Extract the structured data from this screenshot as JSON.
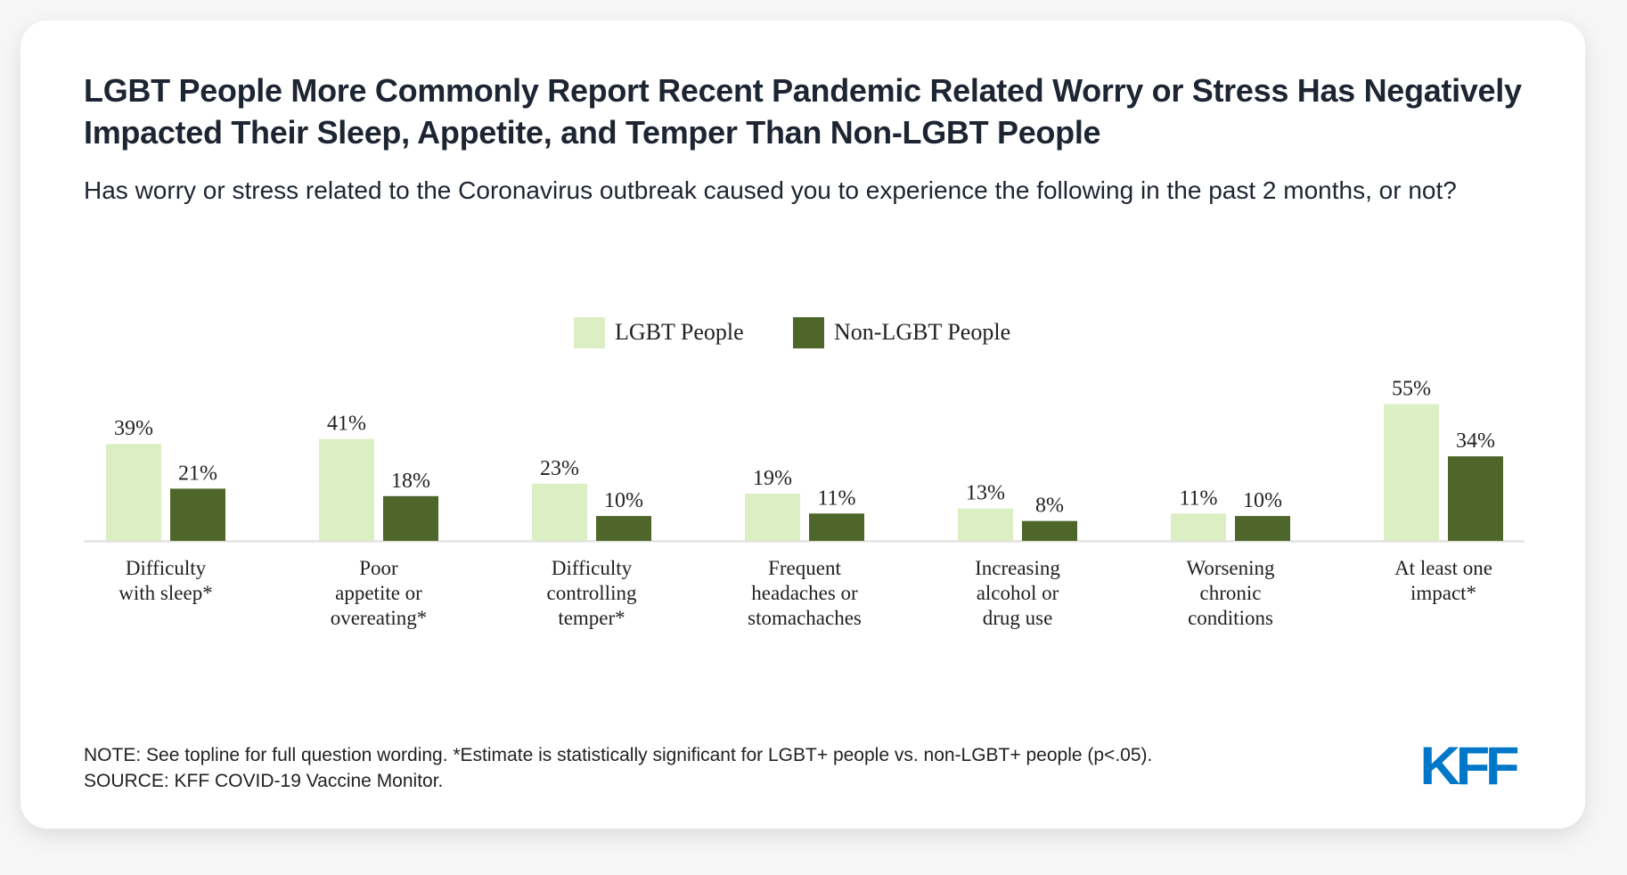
{
  "title": "LGBT People More Commonly Report Recent Pandemic Related Worry or Stress Has Negatively Impacted Their Sleep, Appetite, and Temper Than Non-LGBT People",
  "subtitle": "Has worry or stress related to the Coronavirus outbreak caused you to experience the following in the past 2 months, or not?",
  "colors": {
    "lgbt": "#dcefc4",
    "non_lgbt": "#4e6629",
    "logo": "#0077c8"
  },
  "chart_data": {
    "type": "bar",
    "title": "",
    "xlabel": "",
    "ylabel": "",
    "ylim": [
      0,
      60
    ],
    "grid": false,
    "legend_placement": "top-center",
    "categories": [
      [
        "Difficulty",
        "with sleep*"
      ],
      [
        "Poor",
        "appetite or",
        "overeating*"
      ],
      [
        "Difficulty",
        "controlling",
        "temper*"
      ],
      [
        "Frequent",
        "headaches or",
        "stomachaches"
      ],
      [
        "Increasing",
        "alcohol or",
        "drug use"
      ],
      [
        "Worsening",
        "chronic",
        "conditions"
      ],
      [
        "At least one",
        "impact*"
      ]
    ],
    "series": [
      {
        "name": "LGBT People",
        "values": [
          39,
          41,
          23,
          19,
          13,
          11,
          55
        ]
      },
      {
        "name": "Non-LGBT People",
        "values": [
          21,
          18,
          10,
          11,
          8,
          10,
          34
        ]
      }
    ]
  },
  "footer": {
    "note": "NOTE: See topline for full question wording. *Estimate is statistically significant for LGBT+ people vs. non-LGBT+ people (p<.05).",
    "source": "SOURCE: KFF COVID-19 Vaccine Monitor."
  },
  "logo": "KFF"
}
